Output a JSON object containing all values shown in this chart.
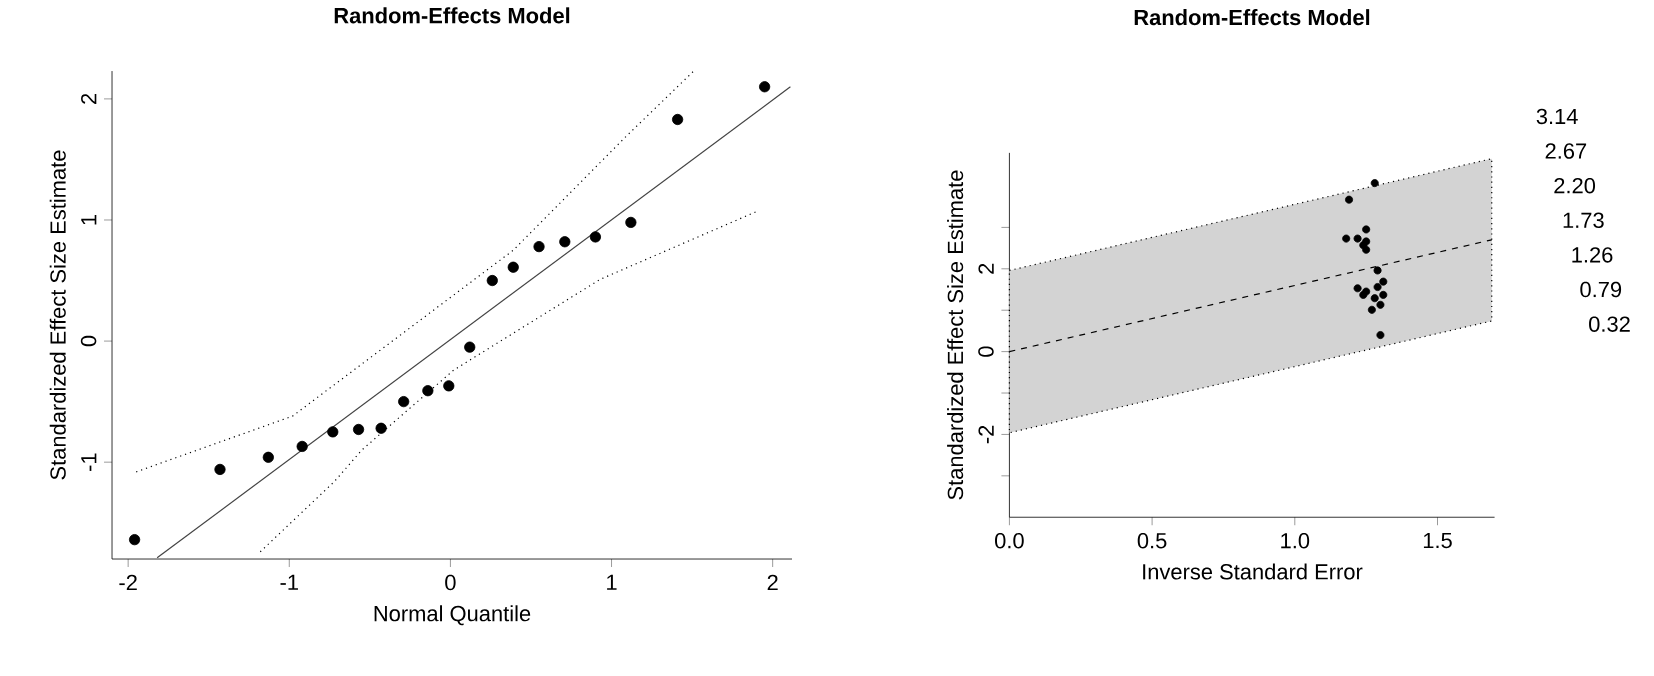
{
  "chart_data": [
    {
      "type": "scatter",
      "title": "Random-Effects Model",
      "xlabel": "Normal Quantile",
      "ylabel": "Standardized Effect Size Estimate",
      "xlim": [
        -2.1,
        2.12
      ],
      "ylim": [
        -1.8,
        2.23
      ],
      "xticks": [
        -2,
        -1,
        0,
        1,
        2
      ],
      "yticks": [
        -1,
        0,
        1,
        2
      ],
      "series": [
        {
          "type": "line",
          "color": "#444444",
          "line_style": "solid",
          "marker": "none",
          "x": [
            -1.82,
            2.11
          ],
          "values": [
            -1.79,
            2.1
          ]
        },
        {
          "type": "line",
          "color": "#000000",
          "line_style": "dotted",
          "marker": "none",
          "x": [
            -1.95,
            -0.98,
            0.0,
            0.39,
            1.09,
            1.51
          ],
          "values": [
            -1.08,
            -0.62,
            0.36,
            0.75,
            1.69,
            2.23
          ]
        },
        {
          "type": "line",
          "color": "#000000",
          "line_style": "dotted",
          "marker": "none",
          "x": [
            -1.18,
            -0.72,
            -0.55,
            0.02,
            0.93,
            1.9
          ],
          "values": [
            -1.74,
            -1.16,
            -0.9,
            -0.24,
            0.51,
            1.07
          ]
        },
        {
          "color": "#000000",
          "marker": "circle",
          "x": [
            -1.96,
            -1.43,
            -1.13,
            -0.92,
            -0.73,
            -0.57,
            -0.43,
            -0.29,
            -0.14,
            -0.01,
            0.12,
            0.26,
            0.39,
            0.55,
            0.71,
            0.9,
            1.12,
            1.41,
            1.95
          ],
          "values": [
            -1.64,
            -1.06,
            -0.96,
            -0.87,
            -0.75,
            -0.73,
            -0.72,
            -0.5,
            -0.41,
            -0.37,
            -0.05,
            0.5,
            0.61,
            0.78,
            0.82,
            0.86,
            0.98,
            1.83,
            2.1
          ]
        }
      ]
    },
    {
      "type": "scatter",
      "title": "Random-Effects Model",
      "xlabel": "Inverse Standard Error",
      "ylabel": "Standardized Effect Size Estimate",
      "xlim": [
        0,
        1.7
      ],
      "ylim": [
        -4,
        4.8
      ],
      "xticks": [
        {
          "value": 0,
          "label": "0.0"
        },
        0.5,
        {
          "value": 1,
          "label": "1.0"
        },
        1.5
      ],
      "yticks": [
        {
          "value": -3,
          "label": null
        },
        -2,
        {
          "value": -1,
          "label": null
        },
        0,
        {
          "value": 1,
          "label": null
        },
        2,
        {
          "value": 3,
          "label": null
        }
      ],
      "series": [
        {
          "type": "line",
          "color": "#000000",
          "line_style": "dashed",
          "marker": "none",
          "x": [
            0,
            1.69
          ],
          "values": [
            0,
            2.7
          ],
          "lower": [
            -1.96,
            0.74
          ],
          "upper": [
            1.96,
            4.66
          ]
        },
        {
          "color": "#000000",
          "marker": "circle",
          "x": [
            1.28,
            1.19,
            1.18,
            1.22,
            1.25,
            1.25,
            1.25,
            1.24,
            1.29,
            1.31,
            1.22,
            1.24,
            1.28,
            1.31,
            1.3,
            1.27,
            1.3,
            1.25,
            1.29
          ],
          "values": [
            4.07,
            3.67,
            2.73,
            2.73,
            2.95,
            2.66,
            2.46,
            2.57,
            1.96,
            1.69,
            1.53,
            1.37,
            1.29,
            1.37,
            1.13,
            1.01,
            0.4,
            1.45,
            1.56
          ]
        }
      ],
      "annotations": [
        "3.14",
        "2.67",
        "2.20",
        "1.73",
        "1.26",
        "0.79",
        "0.32"
      ]
    }
  ]
}
